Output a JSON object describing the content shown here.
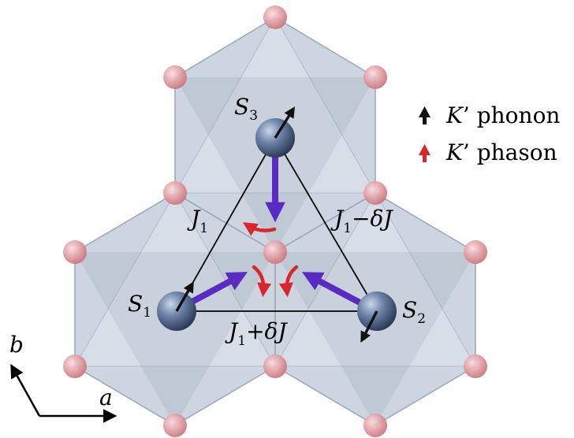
{
  "colors": {
    "hexagon_fill": "#c3cedb",
    "hexagon_stroke": "#9aa7b6",
    "ligand_atom": "#e3a1a6",
    "spin_atom": "#4f6384",
    "phonon_arrow": "#111111",
    "phason_arrow": "#d8262a",
    "bond_arrow": "#5a2bc2",
    "bond_line": "#000000"
  },
  "sites": {
    "s3": {
      "label": "S",
      "sub": "3"
    },
    "s1": {
      "label": "S",
      "sub": "1"
    },
    "s2": {
      "label": "S",
      "sub": "2"
    }
  },
  "bonds": {
    "left": {
      "main": "J",
      "sub": "1",
      "tail": ""
    },
    "right": {
      "main": "J",
      "sub": "1",
      "tail": "−δJ"
    },
    "bottom": {
      "main": "J",
      "sub": "1",
      "tail": "+δJ"
    }
  },
  "axes": {
    "a": "a",
    "b": "b"
  },
  "legend": {
    "phonon": {
      "symbol": "K",
      "text": "’ phonon",
      "icon": "phonon-arrow-icon"
    },
    "phason": {
      "symbol": "K",
      "text": "’ phason",
      "icon": "phason-arrow-icon"
    }
  }
}
